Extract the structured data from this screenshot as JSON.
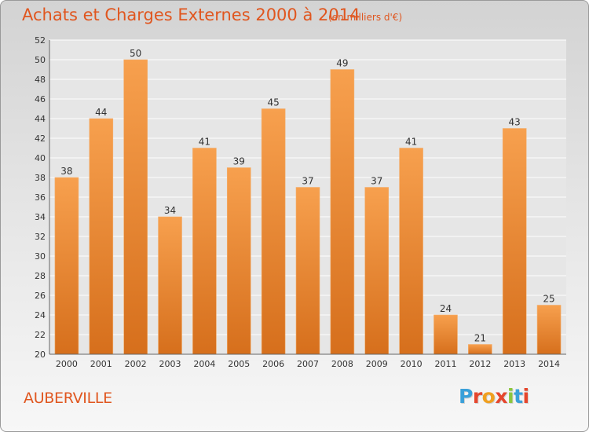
{
  "title": "Achats et Charges Externes 2000 à 2014",
  "unit_note": "(en milliers d'€)",
  "city": "AUBERVILLE",
  "logo": {
    "text": "Proxiti",
    "letters": [
      {
        "ch": "P",
        "color": "#3aa0d9"
      },
      {
        "ch": "r",
        "color": "#e5462d"
      },
      {
        "ch": "o",
        "color": "#f0a020"
      },
      {
        "ch": "x",
        "color": "#e5462d"
      },
      {
        "ch": "i",
        "color": "#8cc63e"
      },
      {
        "ch": "t",
        "color": "#3aa0d9"
      },
      {
        "ch": "i",
        "color": "#e5462d"
      }
    ]
  },
  "colors": {
    "accent": "#e0561f",
    "bar_top": "#f7a04e",
    "bar_bottom": "#d66f1c",
    "grid": "#ffffff",
    "text": "#333333"
  },
  "chart_data": {
    "type": "bar",
    "categories": [
      "2000",
      "2001",
      "2002",
      "2003",
      "2004",
      "2005",
      "2006",
      "2007",
      "2008",
      "2009",
      "2010",
      "2011",
      "2012",
      "2013",
      "2014"
    ],
    "values": [
      38,
      44,
      50,
      34,
      41,
      39,
      45,
      37,
      49,
      37,
      41,
      24,
      21,
      43,
      25
    ],
    "ylim": [
      20,
      52
    ],
    "yticks": [
      20,
      22,
      24,
      26,
      28,
      30,
      32,
      34,
      36,
      38,
      40,
      42,
      44,
      46,
      48,
      50,
      52
    ],
    "grid": true,
    "title": "Achats et Charges Externes 2000 à 2014",
    "xlabel": "",
    "ylabel": ""
  }
}
